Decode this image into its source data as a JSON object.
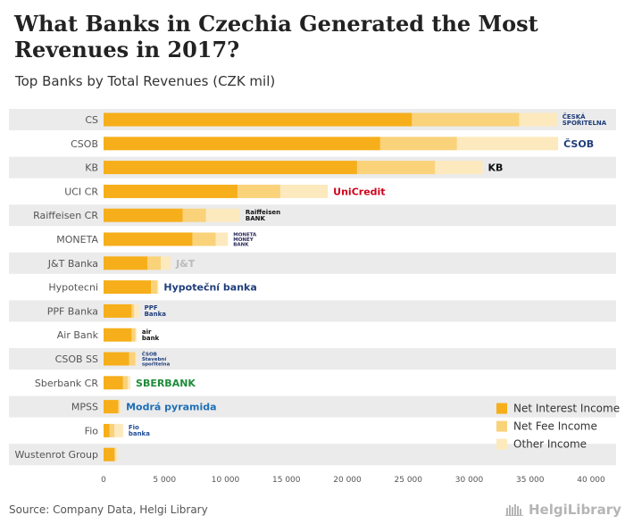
{
  "header": {
    "title": "What Banks in Czechia Generated the Most Revenues in 2017?",
    "subtitle": "Top Banks by Total Revenues (CZK mil)"
  },
  "footer": {
    "source": "Source: Company Data, Helgi Library",
    "brand": "HelgiLibrary"
  },
  "colors": {
    "net_interest": "#F6AE1A",
    "net_fee": "#F9D27A",
    "other": "#FCE9BD",
    "row_band": "#EBEBEB",
    "text": "#555555"
  },
  "chart_data": {
    "type": "bar",
    "orientation": "horizontal",
    "stacked": true,
    "categories": [
      "CS",
      "CSOB",
      "KB",
      "UCI CR",
      "Raiffeisen CR",
      "MONETA",
      "J&T Banka",
      "Hypotecni",
      "PPF Banka",
      "Air Bank",
      "CSOB SS",
      "Sberbank CR",
      "MPSS",
      "Fio",
      "Wustenrot Group"
    ],
    "series": [
      {
        "name": "Net Interest Income",
        "color": "#F6AE1A",
        "values": [
          25300,
          22700,
          20800,
          11000,
          6500,
          7300,
          3600,
          3900,
          2300,
          2300,
          2100,
          1600,
          1200,
          500,
          900
        ]
      },
      {
        "name": "Net Fee Income",
        "color": "#F9D27A",
        "values": [
          8800,
          6300,
          6400,
          3500,
          1900,
          1900,
          1100,
          500,
          200,
          300,
          500,
          400,
          100,
          400,
          100
        ]
      },
      {
        "name": "Other Income",
        "color": "#FCE9BD",
        "values": [
          3100,
          8300,
          3900,
          3900,
          2800,
          1000,
          800,
          100,
          400,
          100,
          100,
          200,
          100,
          700,
          200
        ]
      }
    ],
    "xlim": [
      0,
      40000
    ],
    "xticks": [
      0,
      5000,
      10000,
      15000,
      20000,
      25000,
      30000,
      35000,
      40000
    ],
    "xtick_labels": [
      "0",
      "5 000",
      "10 000",
      "15 000",
      "20 000",
      "25 000",
      "30 000",
      "35 000",
      "40 000"
    ],
    "legend_position": "bottom-right",
    "grid": false
  },
  "logos": [
    {
      "category": "CS",
      "name": "ceska-sporitelna-logo",
      "text": [
        "ČESKÁ",
        "SPOŘITELNA"
      ],
      "color": "#1F3D7A"
    },
    {
      "category": "CSOB",
      "name": "csob-logo",
      "text": [
        "ČSOB"
      ],
      "color": "#1F3D7A"
    },
    {
      "category": "KB",
      "name": "kb-logo",
      "text": [
        "KB"
      ],
      "color": "#111111"
    },
    {
      "category": "UCI CR",
      "name": "unicredit-logo",
      "text": [
        "UniCredit"
      ],
      "color": "#D0021B"
    },
    {
      "category": "Raiffeisen CR",
      "name": "raiffeisen-logo",
      "text": [
        "Raiffeisen",
        "BANK"
      ],
      "color": "#111111"
    },
    {
      "category": "MONETA",
      "name": "moneta-logo",
      "text": [
        "MONETA",
        "MONEY",
        "BANK"
      ],
      "color": "#2A2A5A"
    },
    {
      "category": "J&T Banka",
      "name": "jt-banka-logo",
      "text": [
        "J&T"
      ],
      "color": "#BBBBBB"
    },
    {
      "category": "Hypotecni",
      "name": "hypotecni-banka-logo",
      "text": [
        "Hypoteční banka"
      ],
      "color": "#1F3D7A"
    },
    {
      "category": "PPF Banka",
      "name": "ppf-banka-logo",
      "text": [
        "PPF",
        "Banka"
      ],
      "color": "#1F3D7A"
    },
    {
      "category": "Air Bank",
      "name": "air-bank-logo",
      "text": [
        "air",
        "bank"
      ],
      "color": "#111111"
    },
    {
      "category": "CSOB SS",
      "name": "csob-ss-logo",
      "text": [
        "ČSOB",
        "Stavební",
        "spořitelna"
      ],
      "color": "#1F3D7A"
    },
    {
      "category": "Sberbank CR",
      "name": "sberbank-logo",
      "text": [
        "SBERBANK"
      ],
      "color": "#1E8C3A"
    },
    {
      "category": "MPSS",
      "name": "mpss-logo",
      "text": [
        "Modrá pyramida"
      ],
      "color": "#1E6FB8"
    },
    {
      "category": "Fio",
      "name": "fio-logo",
      "text": [
        "Fio",
        "banka"
      ],
      "color": "#1E4C9A"
    },
    {
      "category": "Wustenrot Group",
      "name": "wustenrot-logo",
      "text": [],
      "color": "#FFFFFF"
    }
  ]
}
